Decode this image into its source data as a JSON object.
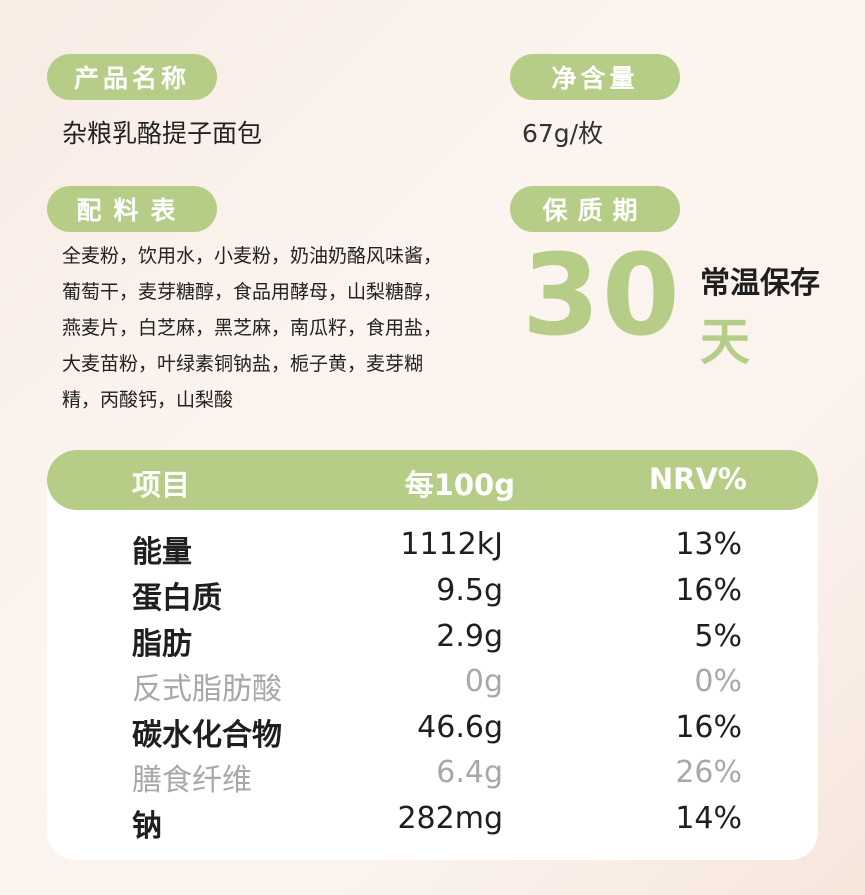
{
  "labels": {
    "product_name": "产品名称",
    "net_content": "净含量",
    "ingredients": "配料表",
    "shelf_life": "保质期"
  },
  "product_name": "杂粮乳酪提子面包",
  "net_content": "67g/枚",
  "ingredients_lines": [
    "全麦粉，饮用水，小麦粉，奶油奶酪风味酱，",
    "葡萄干，麦芽糖醇，食品用酵母，山梨糖醇，",
    "燕麦片，白芝麻，黑芝麻，南瓜籽，食用盐，",
    "大麦苗粉，叶绿素铜钠盐，栀子黄，麦芽糊",
    "精，丙酸钙，山梨酸"
  ],
  "shelf": {
    "number": "30",
    "storage": "常温保存",
    "unit": "天"
  },
  "nutrition": {
    "headers": {
      "item": "项目",
      "per100g": "每100g",
      "nrv": "NRV%"
    },
    "rows": [
      {
        "name": "能量",
        "value": "1112kJ",
        "nrv": "13%"
      },
      {
        "name": "蛋白质",
        "value": "9.5g",
        "nrv": "16%"
      },
      {
        "name": "脂肪",
        "value": "2.9g",
        "nrv": "5%"
      },
      {
        "name": "反式脂肪酸",
        "value": "0g",
        "nrv": "0%"
      },
      {
        "name": "碳水化合物",
        "value": "46.6g",
        "nrv": "16%"
      },
      {
        "name": "膳食纤维",
        "value": "6.4g",
        "nrv": "26%"
      },
      {
        "name": "钠",
        "value": "282mg",
        "nrv": "14%"
      }
    ]
  },
  "colors": {
    "accent": "#b6cd87",
    "muted": "#a8a8a8"
  }
}
